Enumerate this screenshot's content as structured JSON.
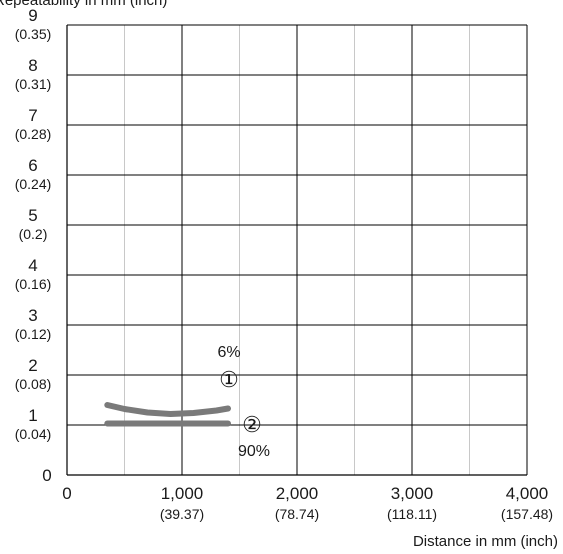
{
  "chart_data": {
    "type": "line",
    "ylabel": "Repeatability in mm (inch)",
    "xlabel": "Distance in mm (inch)",
    "xlim": [
      0,
      4000
    ],
    "ylim": [
      0,
      9
    ],
    "grid": true,
    "x_ticks": [
      {
        "value": 0,
        "label": "0",
        "sub": ""
      },
      {
        "value": 1000,
        "label": "1,000",
        "sub": "(39.37)"
      },
      {
        "value": 2000,
        "label": "2,000",
        "sub": "(78.74)"
      },
      {
        "value": 3000,
        "label": "3,000",
        "sub": "(118.11)"
      },
      {
        "value": 4000,
        "label": "4,000",
        "sub": "(157.48)"
      }
    ],
    "x_minor_grid": [
      500,
      1500,
      2500,
      3500
    ],
    "y_ticks": [
      {
        "value": 0,
        "label": "0",
        "sub": ""
      },
      {
        "value": 1,
        "label": "1",
        "sub": "(0.04)"
      },
      {
        "value": 2,
        "label": "2",
        "sub": "(0.08)"
      },
      {
        "value": 3,
        "label": "3",
        "sub": "(0.12)"
      },
      {
        "value": 4,
        "label": "4",
        "sub": "(0.16)"
      },
      {
        "value": 5,
        "label": "5",
        "sub": "(0.2)"
      },
      {
        "value": 6,
        "label": "6",
        "sub": "(0.24)"
      },
      {
        "value": 7,
        "label": "7",
        "sub": "(0.28)"
      },
      {
        "value": 8,
        "label": "8",
        "sub": "(0.31)"
      },
      {
        "value": 9,
        "label": "9",
        "sub": "(0.35)"
      }
    ],
    "series": [
      {
        "marker": "①",
        "note": "6%",
        "color": "#7a7a7a",
        "x": [
          350,
          500,
          700,
          900,
          1100,
          1300,
          1400
        ],
        "y": [
          1.4,
          1.32,
          1.25,
          1.22,
          1.24,
          1.29,
          1.33
        ]
      },
      {
        "marker": "②",
        "note": "90%",
        "color": "#7a7a7a",
        "x": [
          350,
          700,
          1000,
          1400
        ],
        "y": [
          1.03,
          1.03,
          1.03,
          1.03
        ]
      }
    ]
  }
}
